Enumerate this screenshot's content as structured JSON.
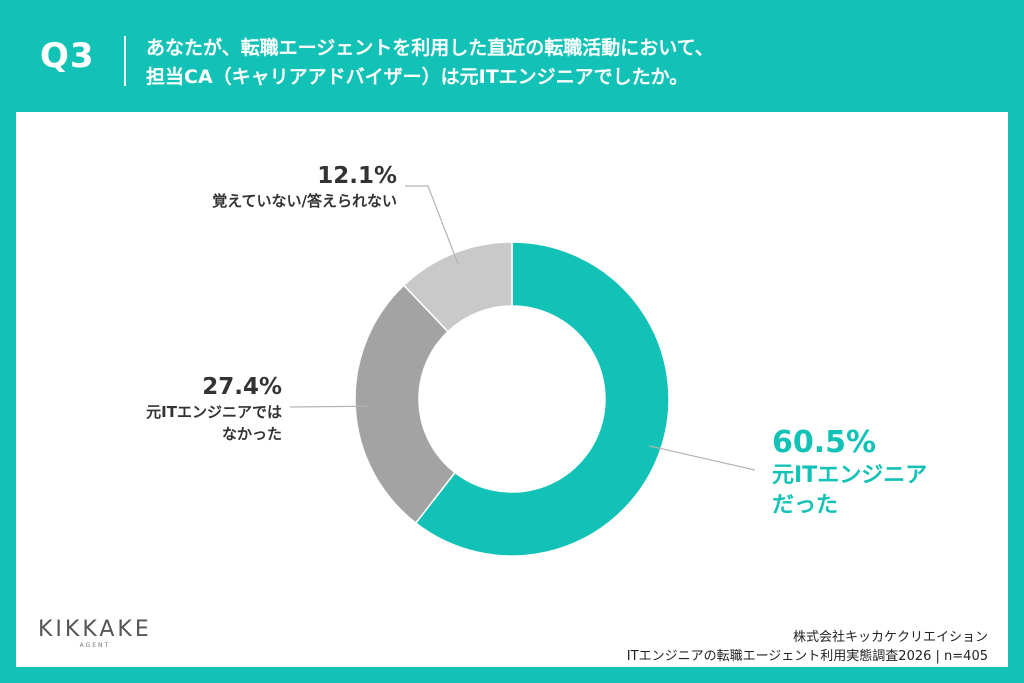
{
  "header": {
    "q_label": "Q3",
    "question_line1": "あなたが、転職エージェントを利用した直近の転職活動において、",
    "question_line2": "担当CA（キャリアアドバイザー）は元ITエンジニアでしたか。"
  },
  "chart_data": {
    "type": "pie",
    "donut": true,
    "categories": [
      "元ITエンジニアだった",
      "元ITエンジニアではなかった",
      "覚えていない/答えられない"
    ],
    "values": [
      60.5,
      27.4,
      12.1
    ],
    "value_labels": [
      "60.5%",
      "27.4%",
      "12.1%"
    ],
    "label_lines": [
      [
        "元ITエンジニア",
        "だった"
      ],
      [
        "元ITエンジニアでは",
        "なかった"
      ],
      [
        "覚えていない/答えられない"
      ]
    ],
    "colors": [
      "#13c2b6",
      "#a3a3a3",
      "#c9c9c9"
    ]
  },
  "branding": {
    "logo": "KIKKAKE",
    "logo_sub": "AGENT"
  },
  "source": {
    "company": "株式会社キッカケクリエイション",
    "survey": "ITエンジニアの転職エージェント利用実態調査2026 | n=405"
  },
  "colors": {
    "accent": "#13c2b6",
    "background": "#ffffff"
  }
}
